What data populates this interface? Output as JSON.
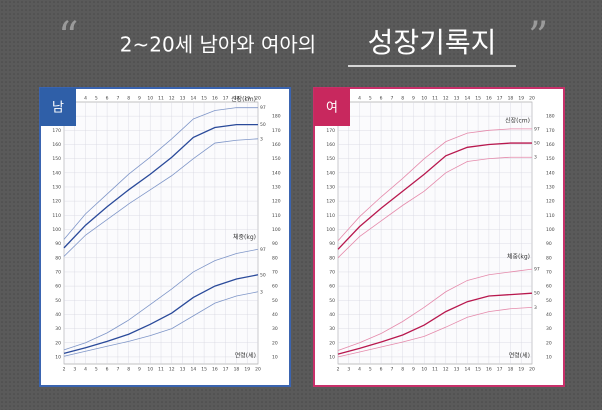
{
  "header": {
    "open_quote": "“",
    "title_main": "2~20세 남아와 여아의",
    "title_emph": "성장기록지",
    "close_quote": "”"
  },
  "chart_data": [
    {
      "type": "line",
      "badge": "남",
      "badge_color": "#2f5fa8",
      "border_color": "#3a64b0",
      "height_label": "신장(cm)",
      "weight_label": "체중(kg)",
      "xlabel": "연령(세)",
      "x": [
        2,
        4,
        6,
        8,
        10,
        12,
        14,
        16,
        18,
        20
      ],
      "xlim": [
        2,
        20
      ],
      "xticks": [
        2,
        3,
        4,
        5,
        6,
        7,
        8,
        9,
        10,
        11,
        12,
        13,
        14,
        15,
        16,
        17,
        18,
        19,
        20
      ],
      "ylim": [
        5,
        190
      ],
      "yticks": [
        10,
        20,
        30,
        40,
        50,
        60,
        70,
        80,
        90,
        100,
        110,
        120,
        130,
        140,
        150,
        160,
        170,
        180
      ],
      "grid": true,
      "height_series": [
        {
          "name": "97",
          "color": "#7f96c8",
          "values": [
            93,
            111,
            125,
            139,
            151,
            164,
            178,
            184,
            186,
            186
          ]
        },
        {
          "name": "50",
          "color": "#2a4a9a",
          "values": [
            87,
            103,
            116,
            128,
            139,
            151,
            165,
            172,
            174,
            174
          ]
        },
        {
          "name": "3",
          "color": "#7f96c8",
          "values": [
            81,
            96,
            107,
            118,
            128,
            138,
            150,
            161,
            163,
            164
          ]
        }
      ],
      "weight_series": [
        {
          "name": "97",
          "color": "#7f96c8",
          "values": [
            15,
            20,
            27,
            36,
            47,
            58,
            70,
            78,
            83,
            86
          ]
        },
        {
          "name": "50",
          "color": "#2a4a9a",
          "values": [
            12.5,
            16.5,
            21,
            26,
            33,
            41,
            52,
            60,
            65,
            68
          ]
        },
        {
          "name": "3",
          "color": "#7f96c8",
          "values": [
            10.5,
            14,
            17.5,
            21,
            25,
            30,
            39,
            48,
            53,
            56
          ]
        }
      ]
    },
    {
      "type": "line",
      "badge": "여",
      "badge_color": "#c8285e",
      "border_color": "#c8306a",
      "height_label": "신장(cm)",
      "weight_label": "체중(kg)",
      "xlabel": "연령(세)",
      "x": [
        2,
        4,
        6,
        8,
        10,
        12,
        14,
        16,
        18,
        20
      ],
      "xlim": [
        2,
        20
      ],
      "xticks": [
        2,
        3,
        4,
        5,
        6,
        7,
        8,
        9,
        10,
        11,
        12,
        13,
        14,
        15,
        16,
        17,
        18,
        19,
        20
      ],
      "ylim": [
        5,
        190
      ],
      "yticks": [
        10,
        20,
        30,
        40,
        50,
        60,
        70,
        80,
        90,
        100,
        110,
        120,
        130,
        140,
        150,
        160,
        170,
        180
      ],
      "grid": true,
      "height_series": [
        {
          "name": "97",
          "color": "#e58aab",
          "values": [
            92,
            109,
            123,
            136,
            150,
            162,
            168,
            170,
            171,
            171
          ]
        },
        {
          "name": "50",
          "color": "#b8184e",
          "values": [
            86,
            102,
            115,
            127,
            139,
            152,
            158,
            160,
            161,
            161
          ]
        },
        {
          "name": "3",
          "color": "#e58aab",
          "values": [
            80,
            95,
            106,
            117,
            127,
            140,
            148,
            150,
            151,
            151
          ]
        }
      ],
      "weight_series": [
        {
          "name": "97",
          "color": "#e58aab",
          "values": [
            14.5,
            20,
            26.5,
            35,
            45,
            56,
            64,
            68,
            70,
            72
          ]
        },
        {
          "name": "50",
          "color": "#b8184e",
          "values": [
            12,
            16,
            20.5,
            25.5,
            32.5,
            42,
            49,
            53,
            54,
            55
          ]
        },
        {
          "name": "3",
          "color": "#e58aab",
          "values": [
            10,
            13.5,
            17,
            20.5,
            24.5,
            31,
            38,
            42,
            44,
            45
          ]
        }
      ]
    }
  ]
}
